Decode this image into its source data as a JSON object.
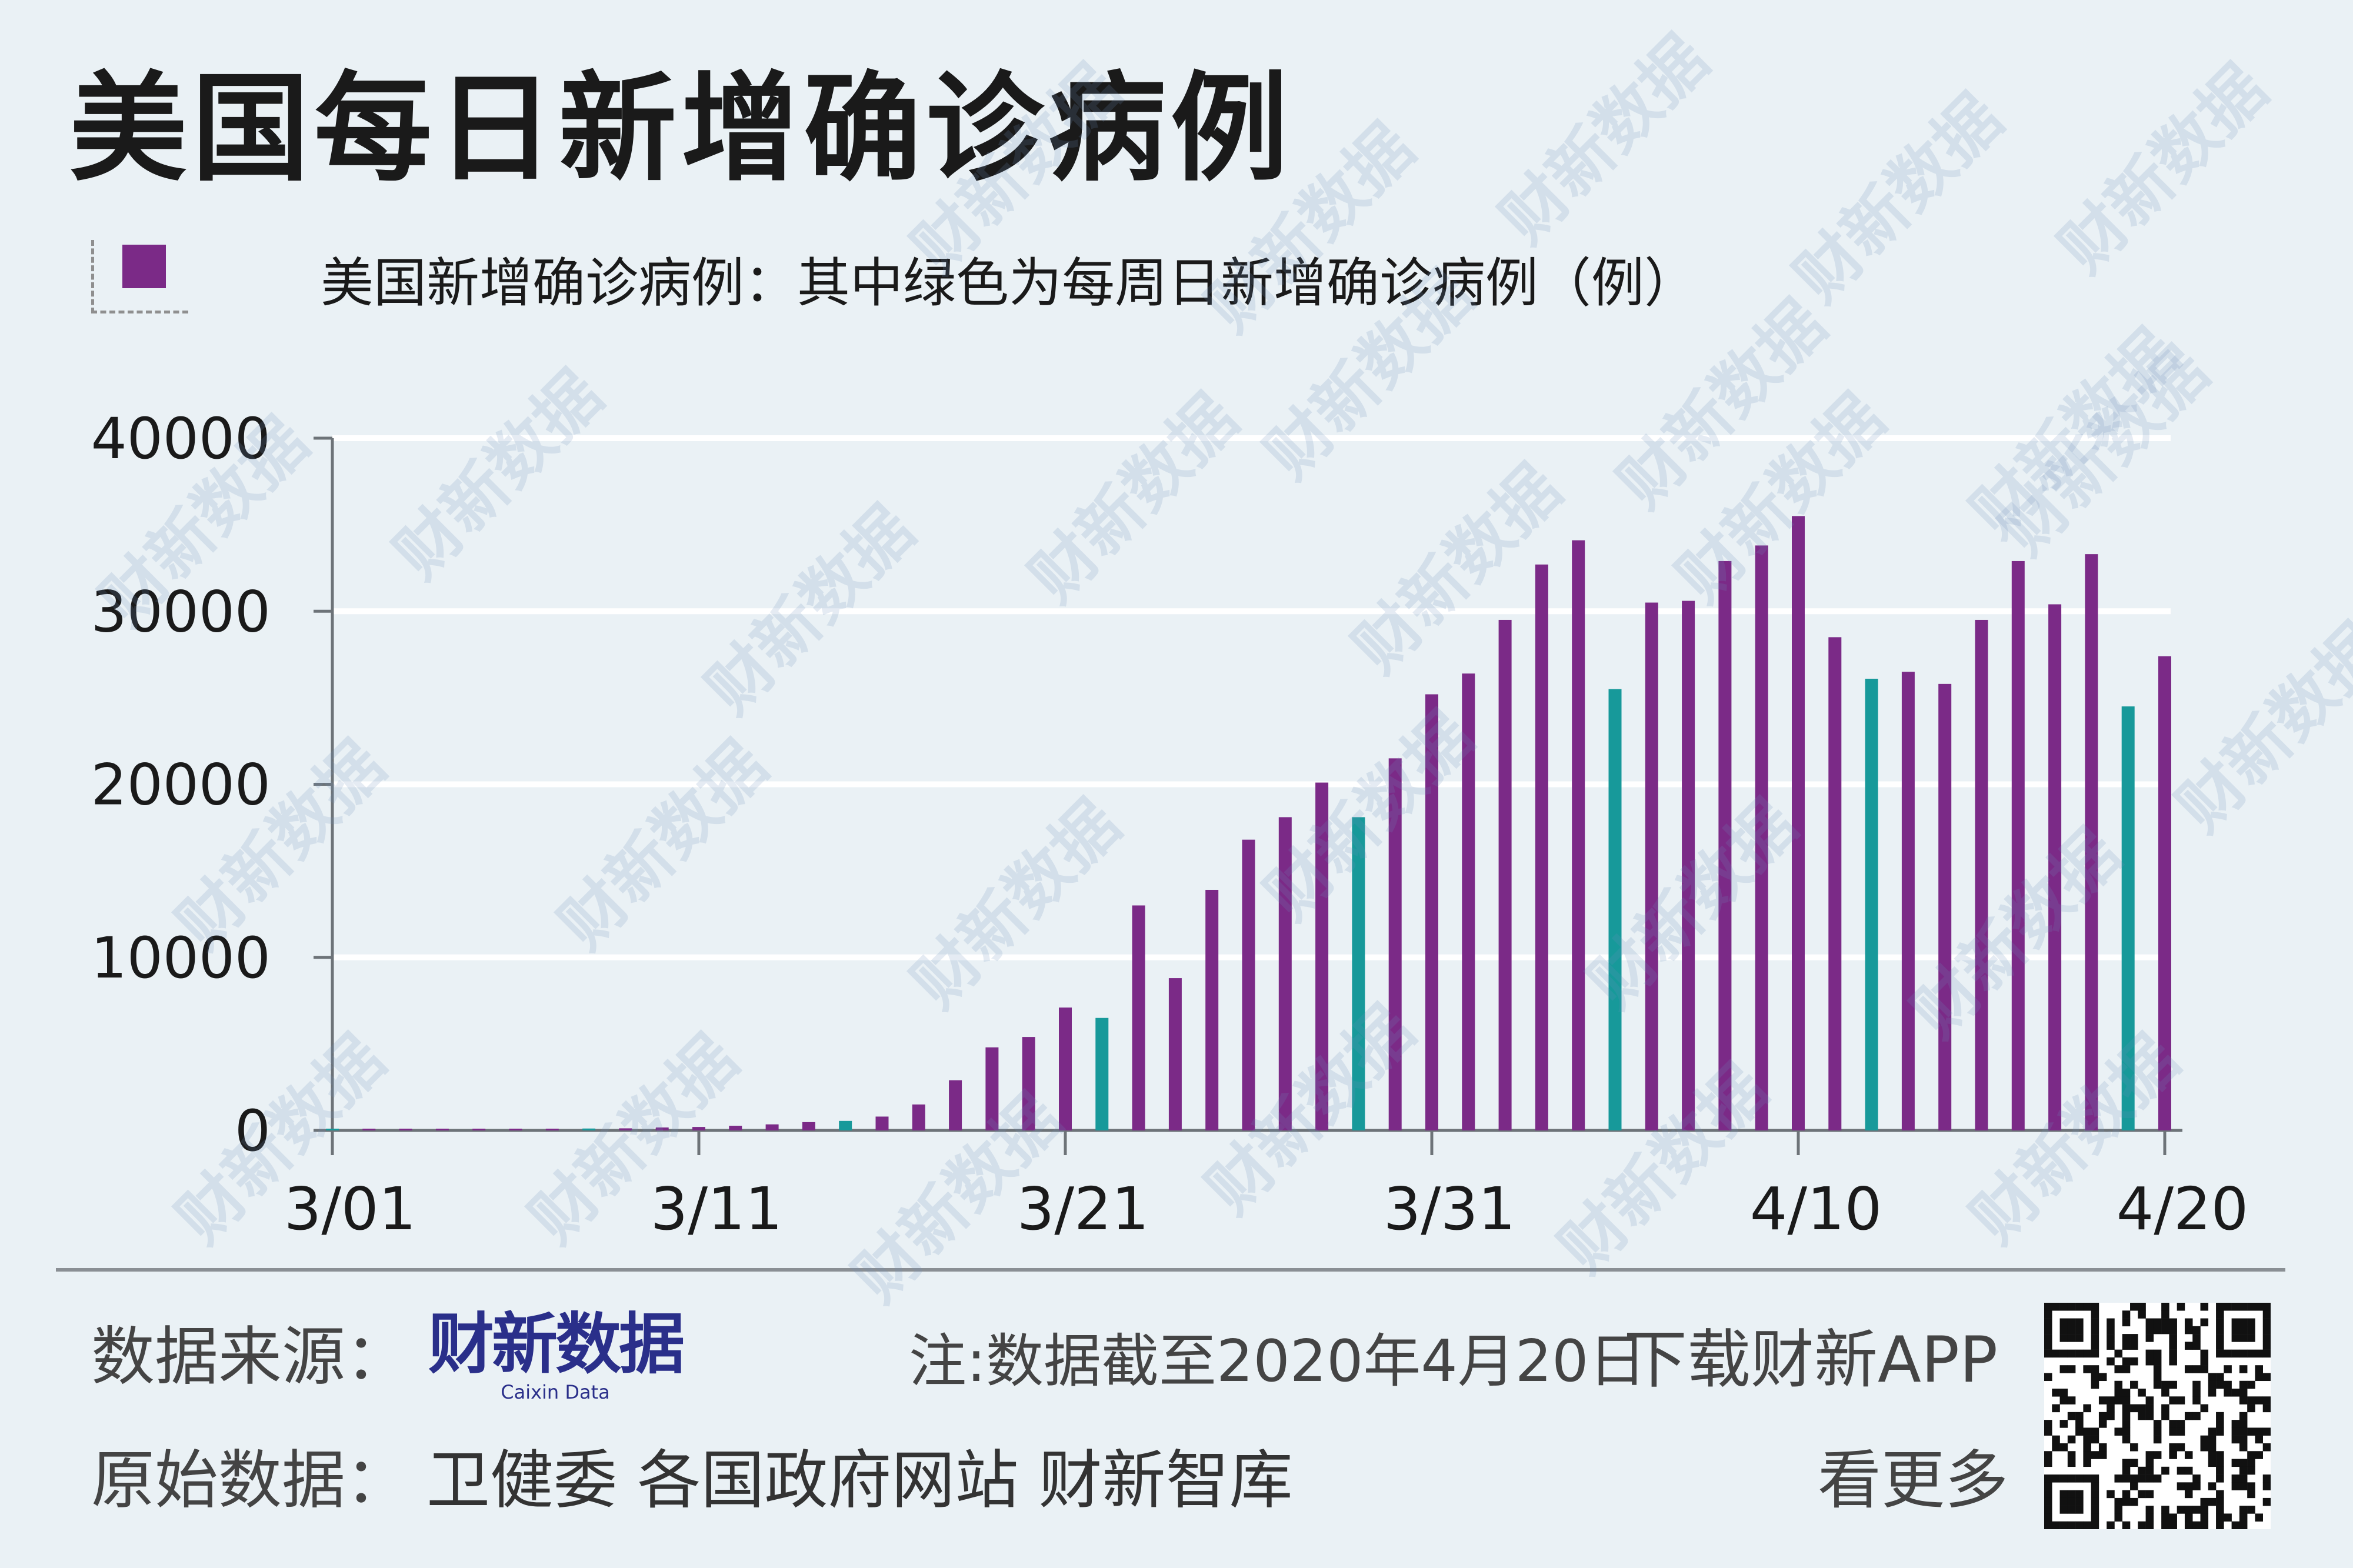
{
  "title": "美国每日新增确诊病例",
  "legend": {
    "label": "美国新增确诊病例：其中绿色为每周日新增确诊病例（例）",
    "color": "#7b2a87"
  },
  "colors": {
    "weekday": "#7b2a87",
    "sunday": "#17999a",
    "grid": "#ffffff",
    "axis": "#6d7378"
  },
  "chart_data": {
    "type": "bar",
    "title": "美国每日新增确诊病例",
    "xlabel": "",
    "ylabel": "",
    "ylim": [
      0,
      40000
    ],
    "yticks": [
      "0",
      "10000",
      "20000",
      "30000",
      "40000"
    ],
    "xtick_labels": [
      "3/01",
      "3/11",
      "3/21",
      "3/31",
      "4/10",
      "4/20"
    ],
    "categories": [
      "3/01",
      "3/02",
      "3/03",
      "3/04",
      "3/05",
      "3/06",
      "3/07",
      "3/08",
      "3/09",
      "3/10",
      "3/11",
      "3/12",
      "3/13",
      "3/14",
      "3/15",
      "3/16",
      "3/17",
      "3/18",
      "3/19",
      "3/20",
      "3/21",
      "3/22",
      "3/23",
      "3/24",
      "3/25",
      "3/26",
      "3/27",
      "3/28",
      "3/29",
      "3/30",
      "3/31",
      "4/01",
      "4/02",
      "4/03",
      "4/04",
      "4/05",
      "4/06",
      "4/07",
      "4/08",
      "4/09",
      "4/10",
      "4/11",
      "4/12",
      "4/13",
      "4/14",
      "4/15",
      "4/16",
      "4/17",
      "4/18",
      "4/19",
      "4/20"
    ],
    "values": [
      10,
      20,
      30,
      40,
      60,
      80,
      100,
      110,
      120,
      170,
      200,
      270,
      350,
      480,
      550,
      800,
      1500,
      2900,
      4800,
      5400,
      7100,
      6500,
      13000,
      8800,
      13900,
      16800,
      18100,
      20100,
      18100,
      21500,
      25200,
      26400,
      29500,
      32700,
      34100,
      25500,
      30500,
      30600,
      32900,
      33800,
      35500,
      28500,
      26100,
      26500,
      25800,
      29500,
      32900,
      30400,
      33300,
      24500,
      27400
    ],
    "sunday_categories": [
      "3/01",
      "3/08",
      "3/15",
      "3/22",
      "3/29",
      "4/05",
      "4/12",
      "4/19"
    ],
    "grid": true
  },
  "footer": {
    "source_label": "数据来源：",
    "source_brand": "财新数据",
    "source_brand_en": "Caixin Data",
    "note": "注:数据截至2020年4月20日",
    "download": "下载财新APP",
    "raw_label": "原始数据：",
    "raw_sources": "卫健委  各国政府网站  财新智库",
    "more": "看更多"
  },
  "watermark_text": "财新数据"
}
